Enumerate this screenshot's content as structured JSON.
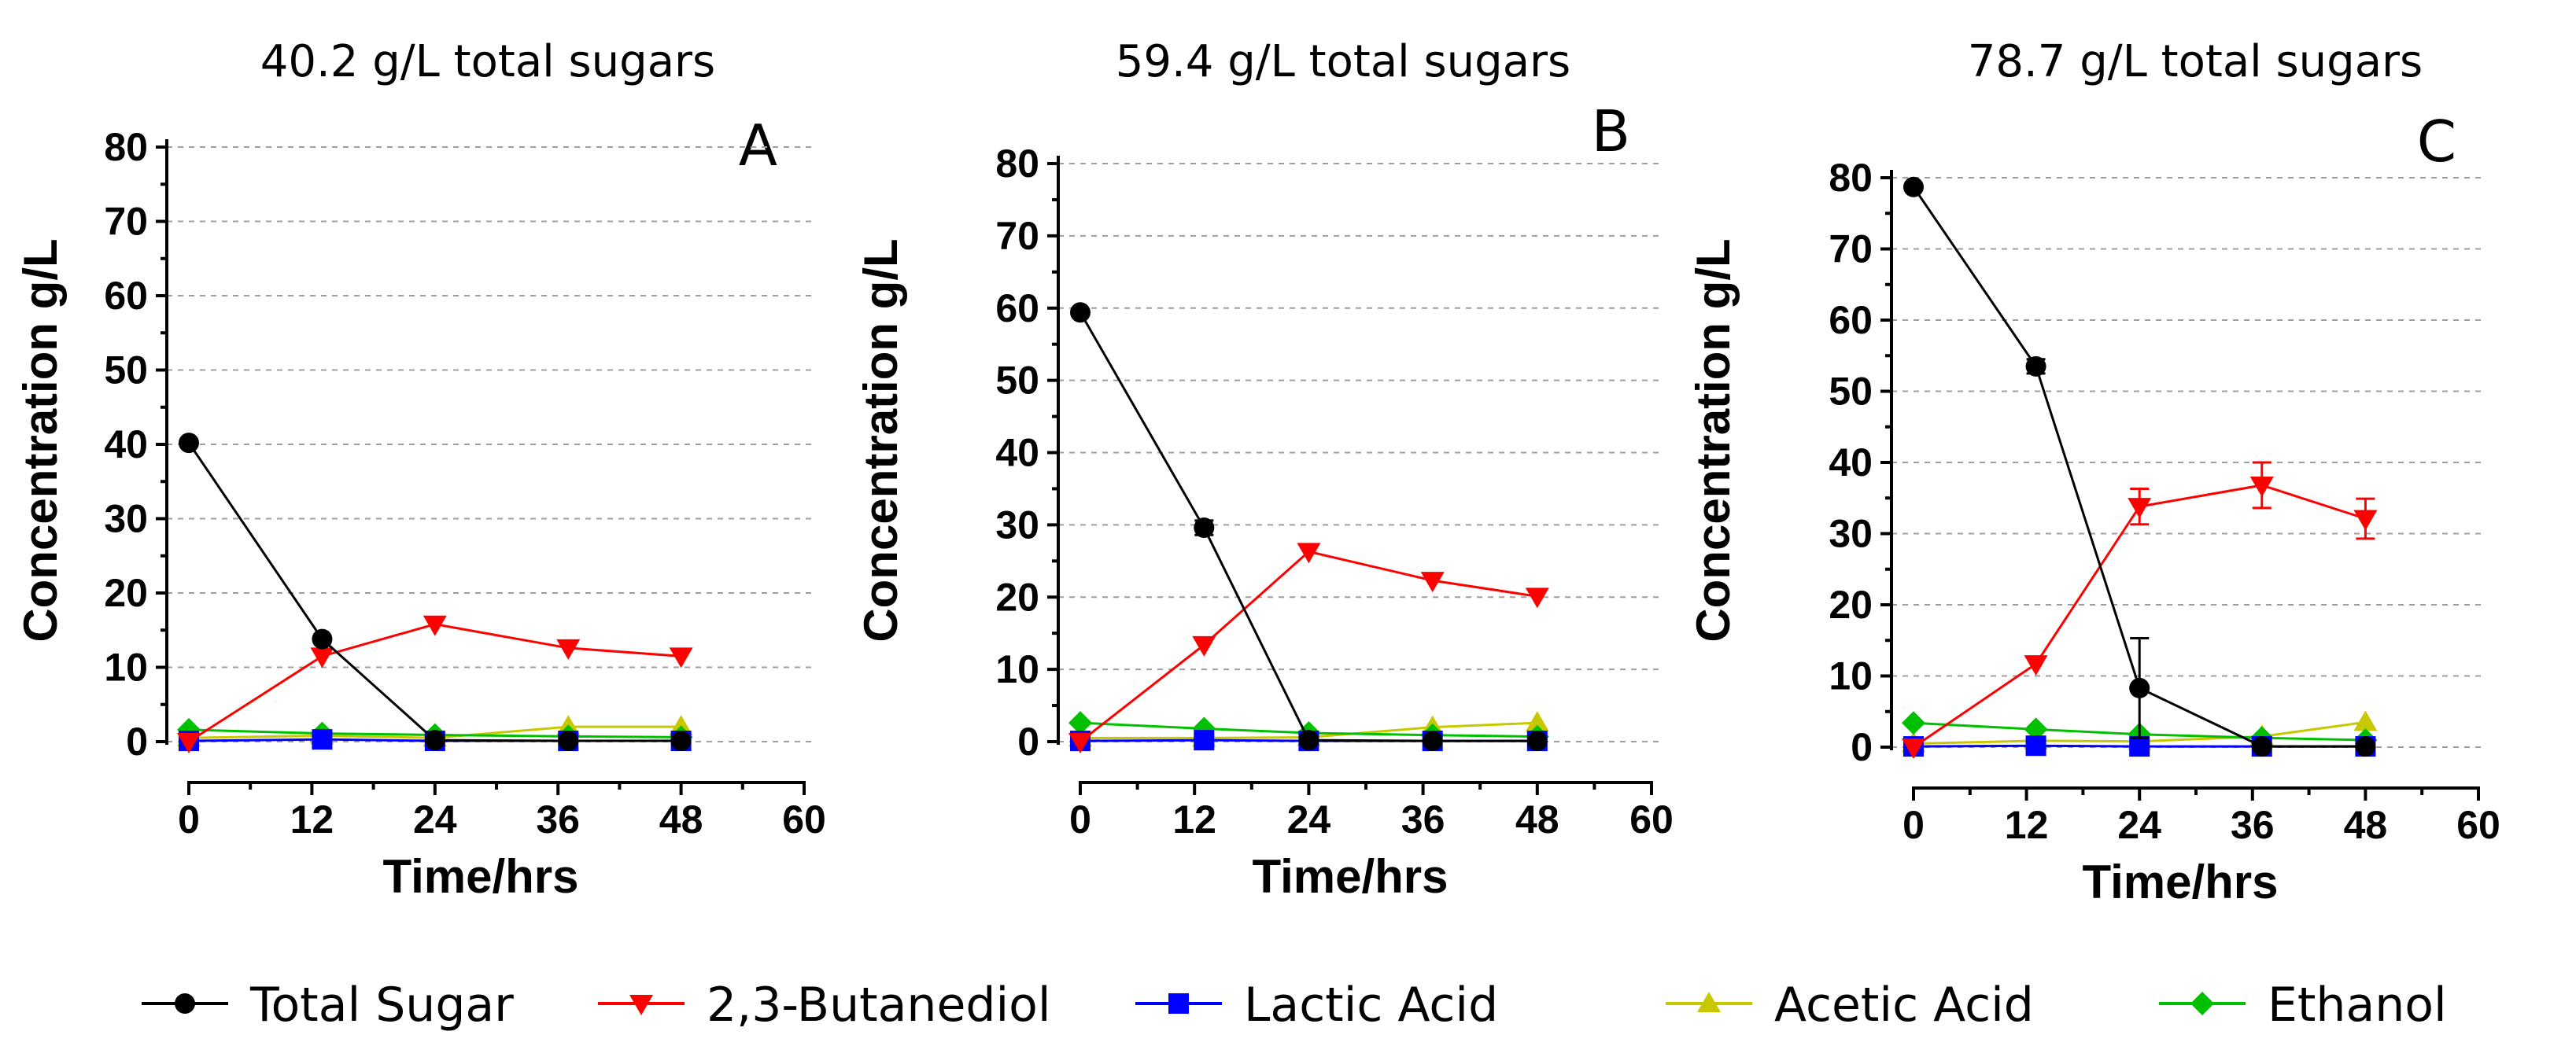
{
  "legend": [
    {
      "name": "Total Sugar",
      "color": "#000000",
      "marker": "circle"
    },
    {
      "name": "2,3-Butanediol",
      "color": "#ff0000",
      "marker": "triangle-down"
    },
    {
      "name": "Lactic Acid",
      "color": "#0000ff",
      "marker": "square"
    },
    {
      "name": "Acetic Acid",
      "color": "#c8c800",
      "marker": "triangle-up"
    },
    {
      "name": "Ethanol",
      "color": "#00c000",
      "marker": "diamond"
    }
  ],
  "chart_data": [
    {
      "type": "line",
      "title": "40.2 g/L total sugars",
      "panel": "A",
      "xlabel": "Time/hrs",
      "ylabel": "Concentration g/L",
      "xlim": [
        0,
        60
      ],
      "ylim": [
        0,
        80
      ],
      "xticks": [
        0,
        12,
        24,
        36,
        48,
        60
      ],
      "yticks": [
        0,
        10,
        20,
        30,
        40,
        50,
        60,
        70,
        80
      ],
      "grid": true,
      "series": [
        {
          "name": "Total Sugar",
          "x": [
            0,
            13,
            24,
            37,
            48
          ],
          "y": [
            40.2,
            13.8,
            0.2,
            0.1,
            0.1
          ],
          "err": [
            0,
            0,
            0,
            0,
            0
          ]
        },
        {
          "name": "2,3-Butanediol",
          "x": [
            0,
            13,
            24,
            37,
            48
          ],
          "y": [
            0,
            11.5,
            15.8,
            12.6,
            11.5
          ],
          "err": [
            0,
            0,
            0,
            0,
            0
          ]
        },
        {
          "name": "Lactic Acid",
          "x": [
            0,
            13,
            24,
            37,
            48
          ],
          "y": [
            0.1,
            0.3,
            0.1,
            0.1,
            0.1
          ],
          "err": [
            0,
            0,
            0,
            0,
            0
          ]
        },
        {
          "name": "Acetic Acid",
          "x": [
            0,
            13,
            24,
            37,
            48
          ],
          "y": [
            0.5,
            0.8,
            0.5,
            2.0,
            2.0
          ],
          "err": [
            0,
            0,
            0,
            0,
            0
          ]
        },
        {
          "name": "Ethanol",
          "x": [
            0,
            13,
            24,
            37,
            48
          ],
          "y": [
            1.6,
            1.1,
            0.9,
            0.7,
            0.6
          ],
          "err": [
            0,
            0,
            0,
            0,
            0
          ]
        }
      ]
    },
    {
      "type": "line",
      "title": "59.4 g/L total sugars",
      "panel": "B",
      "xlabel": "Time/hrs",
      "ylabel": "Concentration g/L",
      "xlim": [
        0,
        60
      ],
      "ylim": [
        0,
        80
      ],
      "xticks": [
        0,
        12,
        24,
        36,
        48,
        60
      ],
      "yticks": [
        0,
        10,
        20,
        30,
        40,
        50,
        60,
        70,
        80
      ],
      "grid": true,
      "series": [
        {
          "name": "Total Sugar",
          "x": [
            0,
            13,
            24,
            37,
            48
          ],
          "y": [
            59.4,
            29.6,
            0.2,
            0.1,
            0.1
          ],
          "err": [
            0,
            1.0,
            0,
            0,
            0
          ]
        },
        {
          "name": "2,3-Butanediol",
          "x": [
            0,
            13,
            24,
            37,
            48
          ],
          "y": [
            0,
            13.4,
            26.3,
            22.3,
            20.1
          ],
          "err": [
            0,
            0,
            0,
            0,
            0
          ]
        },
        {
          "name": "Lactic Acid",
          "x": [
            0,
            13,
            24,
            37,
            48
          ],
          "y": [
            0.1,
            0.2,
            0.1,
            0.1,
            0.1
          ],
          "err": [
            0,
            0,
            0,
            0,
            0
          ]
        },
        {
          "name": "Acetic Acid",
          "x": [
            0,
            13,
            24,
            37,
            48
          ],
          "y": [
            0.5,
            0.5,
            0.6,
            2.0,
            2.6
          ],
          "err": [
            0,
            0,
            0,
            0,
            0
          ]
        },
        {
          "name": "Ethanol",
          "x": [
            0,
            13,
            24,
            37,
            48
          ],
          "y": [
            2.6,
            1.8,
            1.2,
            0.9,
            0.7
          ],
          "err": [
            0,
            0,
            0,
            0,
            0
          ]
        }
      ]
    },
    {
      "type": "line",
      "title": "78.7 g/L total sugars",
      "panel": "C",
      "xlabel": "Time/hrs",
      "ylabel": "Concentration g/L",
      "xlim": [
        0,
        60
      ],
      "ylim": [
        0,
        80
      ],
      "xticks": [
        0,
        12,
        24,
        36,
        48,
        60
      ],
      "yticks": [
        0,
        10,
        20,
        30,
        40,
        50,
        60,
        70,
        80
      ],
      "grid": true,
      "series": [
        {
          "name": "Total Sugar",
          "x": [
            0,
            13,
            24,
            37,
            48
          ],
          "y": [
            78.7,
            53.5,
            8.3,
            0.1,
            0.1
          ],
          "err": [
            0,
            1.0,
            7.0,
            0,
            0
          ]
        },
        {
          "name": "2,3-Butanediol",
          "x": [
            0,
            13,
            24,
            37,
            48
          ],
          "y": [
            0,
            11.7,
            33.8,
            36.8,
            32.1
          ],
          "err": [
            0,
            0,
            2.5,
            3.2,
            2.8
          ]
        },
        {
          "name": "Lactic Acid",
          "x": [
            0,
            13,
            24,
            37,
            48
          ],
          "y": [
            0.1,
            0.2,
            0.1,
            0.1,
            0.1
          ],
          "err": [
            0,
            0,
            0,
            0,
            0
          ]
        },
        {
          "name": "Acetic Acid",
          "x": [
            0,
            13,
            24,
            37,
            48
          ],
          "y": [
            0.5,
            0.9,
            0.8,
            1.5,
            3.5
          ],
          "err": [
            0,
            0,
            0,
            0,
            0
          ]
        },
        {
          "name": "Ethanol",
          "x": [
            0,
            13,
            24,
            37,
            48
          ],
          "y": [
            3.4,
            2.5,
            1.8,
            1.3,
            1.0
          ],
          "err": [
            0,
            0,
            0,
            0,
            0
          ]
        }
      ]
    }
  ]
}
